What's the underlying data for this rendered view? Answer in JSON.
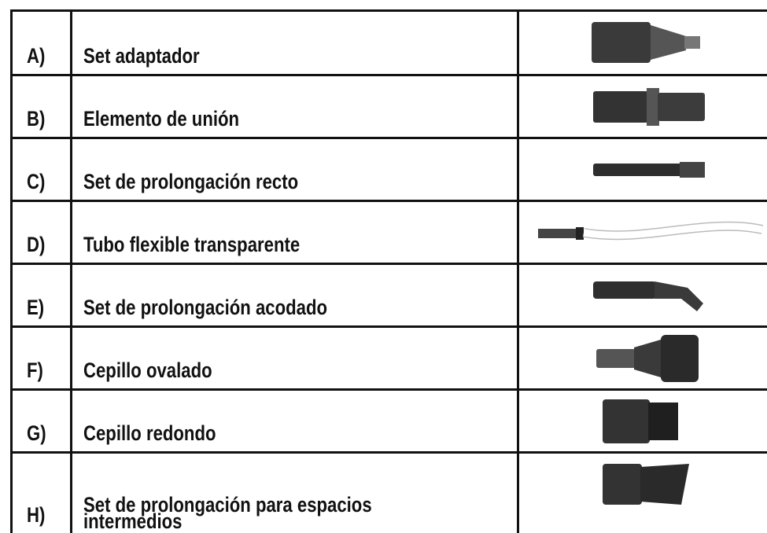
{
  "table": {
    "rows": [
      [
        "A)",
        "Set adaptador"
      ],
      [
        "B)",
        "Elemento de unión"
      ],
      [
        "C)",
        "Set de prolongación recto"
      ],
      [
        "D)",
        "Tubo flexible transparente"
      ],
      [
        "E)",
        "Set de prolongación acodado"
      ],
      [
        "F)",
        "Cepillo ovalado"
      ],
      [
        "G)",
        "Cepillo redondo"
      ],
      [
        "H)",
        "Set de prolongación para espacios intermedios"
      ]
    ]
  }
}
